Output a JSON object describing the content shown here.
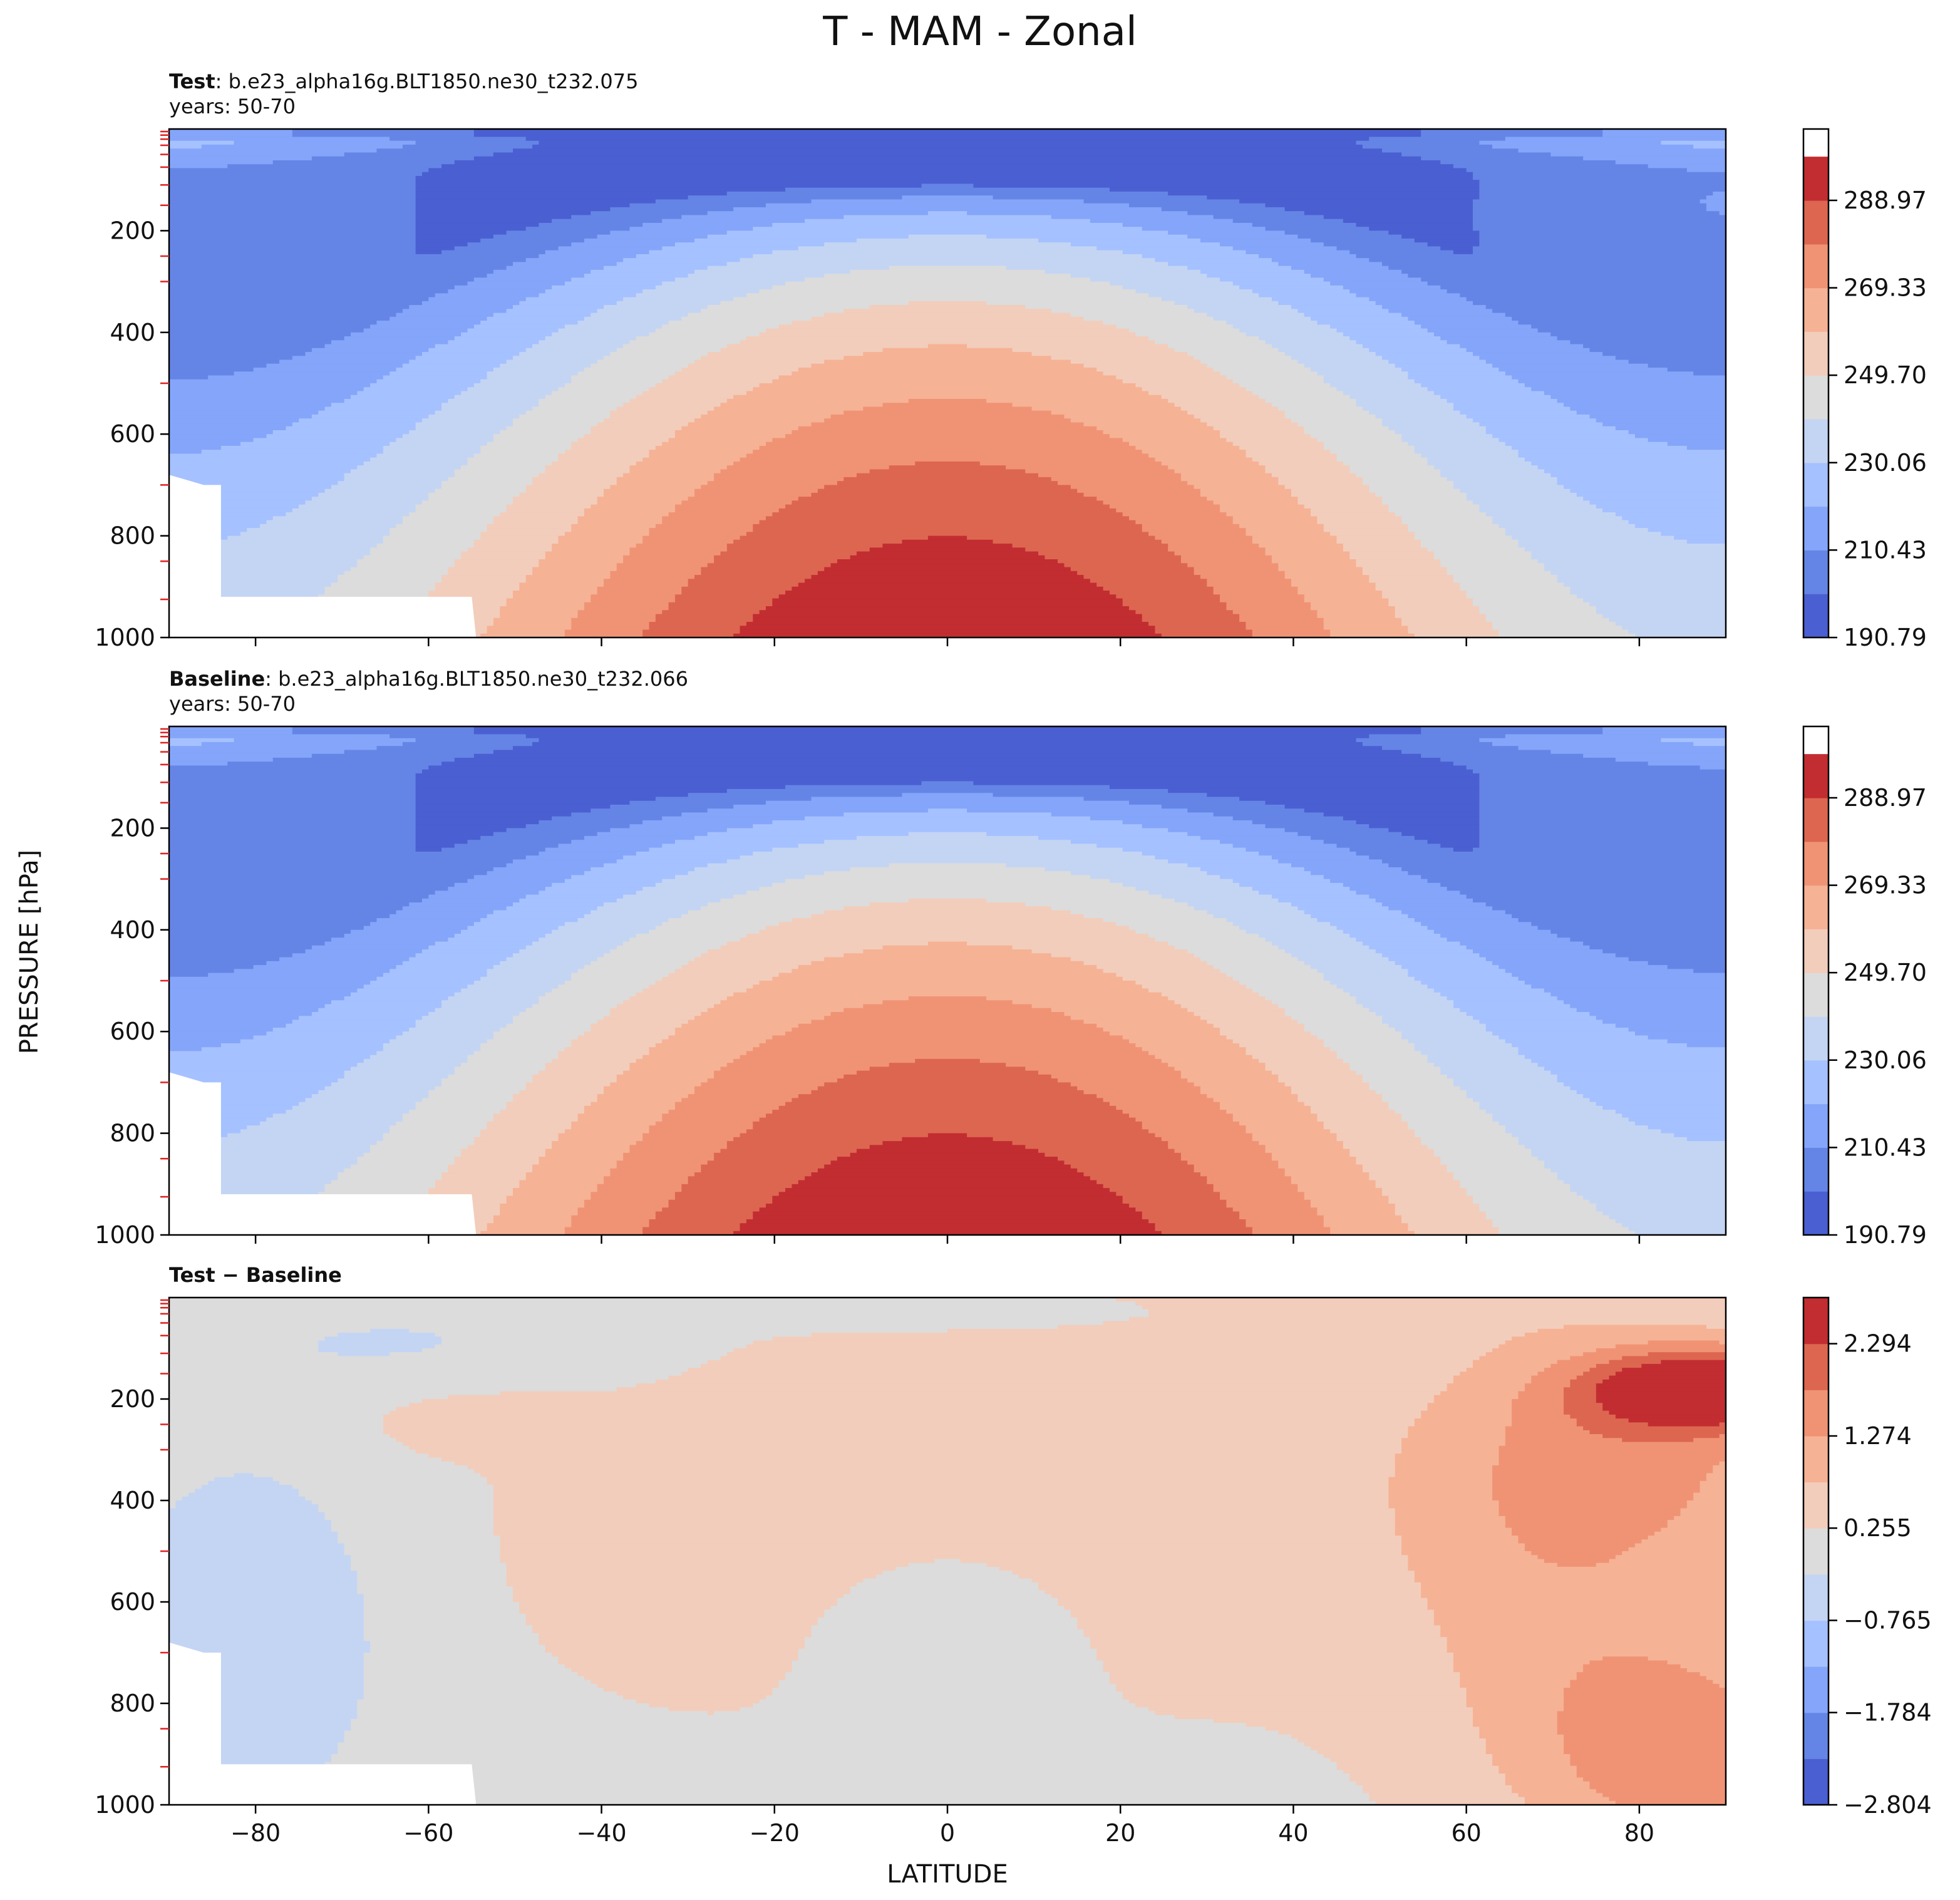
{
  "chart_data": {
    "type": "contour",
    "title": "T - MAM - Zonal",
    "xlabel": "LATITUDE",
    "ylabel": "PRESSURE [hPa]",
    "xlim": [
      -90,
      90
    ],
    "ylim": [
      1000,
      0
    ],
    "x_ticks": [
      "−80",
      "−60",
      "−40",
      "−20",
      "0",
      "20",
      "40",
      "60",
      "80"
    ],
    "x_tick_values": [
      -80,
      -60,
      -40,
      -20,
      0,
      20,
      40,
      60,
      80
    ],
    "y_ticks": [
      "200",
      "400",
      "600",
      "800",
      "1000"
    ],
    "y_tick_values": [
      200,
      400,
      600,
      800,
      1000
    ],
    "panels": [
      {
        "id": "test",
        "label": "Test",
        "case": ": b.e23_alpha16g.BLT1850.ne30_t232.075",
        "years": "years: 50-70",
        "colorbar": {
          "min": 190.79,
          "max": 305,
          "ticks": [
            190.79,
            210.43,
            230.06,
            249.7,
            269.33,
            288.97
          ],
          "tick_labels": [
            "190.79",
            "210.43",
            "230.06",
            "249.70",
            "269.33",
            "288.97"
          ],
          "levels": [
            190.79,
            200.61,
            210.43,
            220.25,
            230.06,
            239.88,
            249.7,
            259.52,
            269.33,
            279.15,
            288.97,
            298.79
          ]
        }
      },
      {
        "id": "baseline",
        "label": "Baseline",
        "case": ": b.e23_alpha16g.BLT1850.ne30_t232.066",
        "years": "years: 50-70",
        "colorbar": {
          "min": 190.79,
          "max": 305,
          "ticks": [
            190.79,
            210.43,
            230.06,
            249.7,
            269.33,
            288.97
          ],
          "tick_labels": [
            "190.79",
            "210.43",
            "230.06",
            "249.70",
            "269.33",
            "288.97"
          ],
          "levels": [
            190.79,
            200.61,
            210.43,
            220.25,
            230.06,
            239.88,
            249.7,
            259.52,
            269.33,
            279.15,
            288.97,
            298.79
          ]
        }
      },
      {
        "id": "diff",
        "label": "Test − Baseline",
        "case": "",
        "years": "",
        "colorbar": {
          "min": -2.804,
          "max": 2.804,
          "ticks": [
            -2.804,
            -1.784,
            -0.765,
            0.255,
            1.274,
            2.294
          ],
          "tick_labels": [
            "−2.804",
            "−1.784",
            "−0.765",
            "0.255",
            "1.274",
            "2.294"
          ],
          "levels": [
            -2.804,
            -2.294,
            -1.784,
            -1.274,
            -0.765,
            -0.255,
            0.255,
            0.765,
            1.274,
            1.784,
            2.294,
            2.804
          ]
        }
      }
    ],
    "colors": [
      "#4a5fd1",
      "#6585e6",
      "#84a5f9",
      "#a5c1ff",
      "#c4d5f3",
      "#dcdcdc",
      "#f2cdbb",
      "#f6b295",
      "#f09375",
      "#dd6651",
      "#c22d31"
    ]
  }
}
